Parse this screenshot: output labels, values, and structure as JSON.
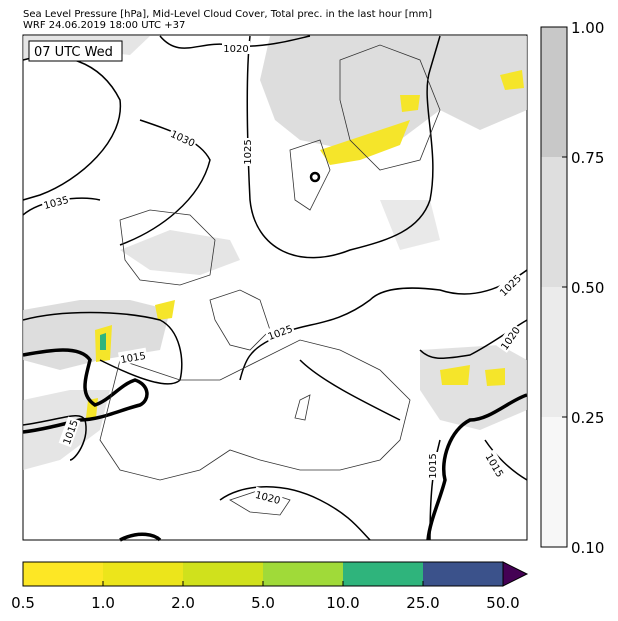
{
  "header": {
    "line1": "Sea Level Pressure [hPa], Mid-Level Cloud Cover, Total prec. in the last hour [mm]",
    "line2": "WRF 24.06.2019 18:00 UTC +37"
  },
  "map": {
    "time_label": "07 UTC Wed",
    "isobar_labels": [
      "1020",
      "1030",
      "1025",
      "1035",
      "1025",
      "1025",
      "1020",
      "1015",
      "1015",
      "1015",
      "1015",
      "1020"
    ]
  },
  "cloud_colorbar": {
    "ticks": [
      "0.10",
      "0.25",
      "0.50",
      "0.75",
      "1.00"
    ],
    "colors": [
      "#f7f7f7",
      "#ebebeb",
      "#dedede",
      "#c8c8c8"
    ]
  },
  "precip_colorbar": {
    "ticks": [
      "0.5",
      "1.0",
      "2.0",
      "5.0",
      "10.0",
      "25.0",
      "50.0"
    ],
    "colors": [
      "#fde725",
      "#ece51b",
      "#d0e11c",
      "#a0da39",
      "#2fb47c",
      "#3b528b"
    ],
    "extend_color": "#440154"
  }
}
